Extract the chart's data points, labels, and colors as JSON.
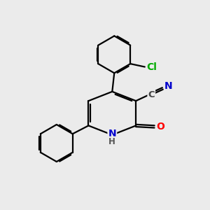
{
  "bg_color": "#ebebeb",
  "bond_color": "#000000",
  "bond_width": 1.6,
  "atom_colors": {
    "N": "#0000cc",
    "O": "#ff0000",
    "Cl": "#00aa00",
    "C_label": "#444444",
    "H": "#555555"
  },
  "font_size_atom": 10,
  "font_size_small": 8.5,
  "font_size_CN": 9.5
}
